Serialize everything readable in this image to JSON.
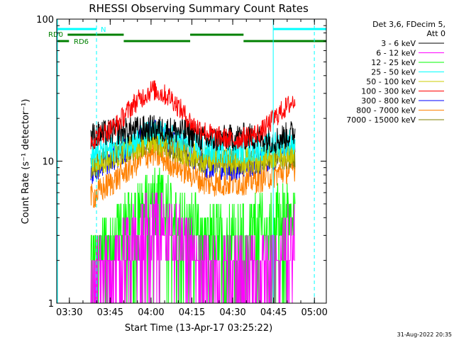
{
  "chart_data": {
    "type": "line",
    "title": "RHESSI Observing Summary Count Rates",
    "xlabel": "Start Time (13-Apr-17 03:25:22)",
    "ylabel": "Count Rate (s⁻¹ detector⁻¹)",
    "x_unit": "minutes after 03:25:22 UT",
    "xlim": [
      0,
      99
    ],
    "ylim": [
      1,
      100
    ],
    "yscale": "log",
    "x_ticks": [
      "03:30",
      "03:45",
      "04:00",
      "04:15",
      "04:30",
      "04:45",
      "05:00"
    ],
    "x_tick_minutes": [
      4.63,
      19.63,
      34.63,
      49.63,
      64.63,
      79.63,
      94.63
    ],
    "y_ticks": [
      "1",
      "10",
      "100"
    ],
    "y_tick_values": [
      1,
      10,
      100
    ],
    "legend_header": [
      "Det 3,6, FDecim 5,",
      "Att 0"
    ],
    "legend_position": "right",
    "data_start_min": 12.5,
    "data_end_min": 87.5,
    "series": [
      {
        "name": "3 - 6 keV",
        "color": "#000000",
        "keyframes": [
          [
            12.5,
            15
          ],
          [
            20,
            16
          ],
          [
            35,
            17
          ],
          [
            48,
            16
          ],
          [
            55,
            14
          ],
          [
            70,
            15
          ],
          [
            80,
            14
          ],
          [
            87.5,
            16
          ]
        ]
      },
      {
        "name": "6 - 12 keV",
        "color": "#ff00ff",
        "keyframes": [
          [
            12.5,
            1.9
          ],
          [
            25,
            3.0
          ],
          [
            35,
            4.5
          ],
          [
            45,
            3.5
          ],
          [
            55,
            2.2
          ],
          [
            70,
            2.0
          ],
          [
            80,
            2.5
          ],
          [
            87.5,
            3.5
          ]
        ]
      },
      {
        "name": "12 - 25 keV",
        "color": "#00ff00",
        "keyframes": [
          [
            12.5,
            2.5
          ],
          [
            25,
            4.2
          ],
          [
            35,
            6.5
          ],
          [
            45,
            5.0
          ],
          [
            55,
            3.5
          ],
          [
            70,
            3.8
          ],
          [
            80,
            4.5
          ],
          [
            87.5,
            6.0
          ]
        ]
      },
      {
        "name": "25 - 50 keV",
        "color": "#00ffff",
        "keyframes": [
          [
            12.5,
            11
          ],
          [
            25,
            13
          ],
          [
            35,
            16
          ],
          [
            45,
            14
          ],
          [
            55,
            12
          ],
          [
            70,
            12
          ],
          [
            80,
            13
          ],
          [
            87.5,
            14
          ]
        ]
      },
      {
        "name": "50 - 100 keV",
        "color": "#cccc00",
        "keyframes": [
          [
            12.5,
            9
          ],
          [
            25,
            12
          ],
          [
            35,
            14
          ],
          [
            45,
            12
          ],
          [
            55,
            10
          ],
          [
            70,
            10
          ],
          [
            80,
            11
          ],
          [
            87.5,
            12
          ]
        ]
      },
      {
        "name": "100 - 300 keV",
        "color": "#ff0000",
        "keyframes": [
          [
            12.5,
            14
          ],
          [
            22,
            18
          ],
          [
            28,
            25
          ],
          [
            35,
            32
          ],
          [
            42,
            28
          ],
          [
            50,
            18
          ],
          [
            58,
            15
          ],
          [
            65,
            14
          ],
          [
            75,
            16
          ],
          [
            82,
            22
          ],
          [
            87.5,
            27
          ]
        ]
      },
      {
        "name": "300 - 800 keV",
        "color": "#0000ff",
        "keyframes": [
          [
            12.5,
            8.5
          ],
          [
            22,
            11
          ],
          [
            30,
            14
          ],
          [
            35,
            16
          ],
          [
            45,
            13
          ],
          [
            55,
            9.5
          ],
          [
            65,
            9
          ],
          [
            75,
            10
          ],
          [
            87.5,
            12
          ]
        ]
      },
      {
        "name": "800 - 7000 keV",
        "color": "#ff8000",
        "keyframes": [
          [
            12.5,
            5.5
          ],
          [
            22,
            7.5
          ],
          [
            30,
            10
          ],
          [
            35,
            11.5
          ],
          [
            45,
            9
          ],
          [
            55,
            7
          ],
          [
            65,
            7
          ],
          [
            75,
            7.5
          ],
          [
            87.5,
            9
          ]
        ]
      },
      {
        "name": "7000 - 15000 keV",
        "color": "#808000",
        "keyframes": [
          [
            12.5,
            9
          ],
          [
            25,
            12
          ],
          [
            35,
            14
          ],
          [
            45,
            12
          ],
          [
            55,
            10
          ],
          [
            70,
            10
          ],
          [
            87.5,
            11
          ]
        ]
      }
    ],
    "status_bars": {
      "N": {
        "label": "N",
        "color": "#00ffff",
        "segments": [
          [
            0,
            14.6
          ],
          [
            79.5,
            99
          ]
        ]
      },
      "RD0": {
        "label": "RD0",
        "color": "#008000",
        "segments": [
          [
            4,
            24.6
          ],
          [
            49,
            68.6
          ]
        ]
      },
      "RD6": {
        "label": "RD6",
        "color": "#008000",
        "segments": [
          [
            0,
            4.5
          ],
          [
            24.6,
            49
          ],
          [
            68.6,
            99
          ]
        ]
      }
    },
    "night_boundaries_min": [
      14.6,
      79.5,
      94.6
    ],
    "night_boundary_styles": [
      "dashed",
      "solid",
      "dashed"
    ]
  },
  "footer_date": "31-Aug-2022 20:35"
}
